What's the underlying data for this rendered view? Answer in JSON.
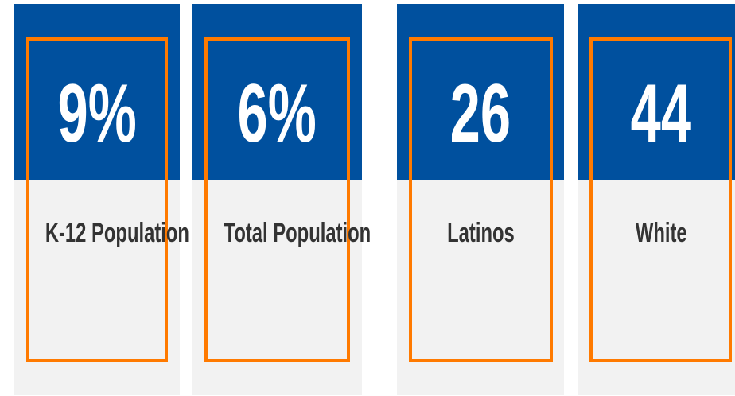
{
  "cards": [
    {
      "value": "9%",
      "label": "K-12 Population"
    },
    {
      "value": "6%",
      "label": "Total Population"
    },
    {
      "value": "26",
      "label": "Latinos"
    },
    {
      "value": "44",
      "label": "White"
    }
  ]
}
